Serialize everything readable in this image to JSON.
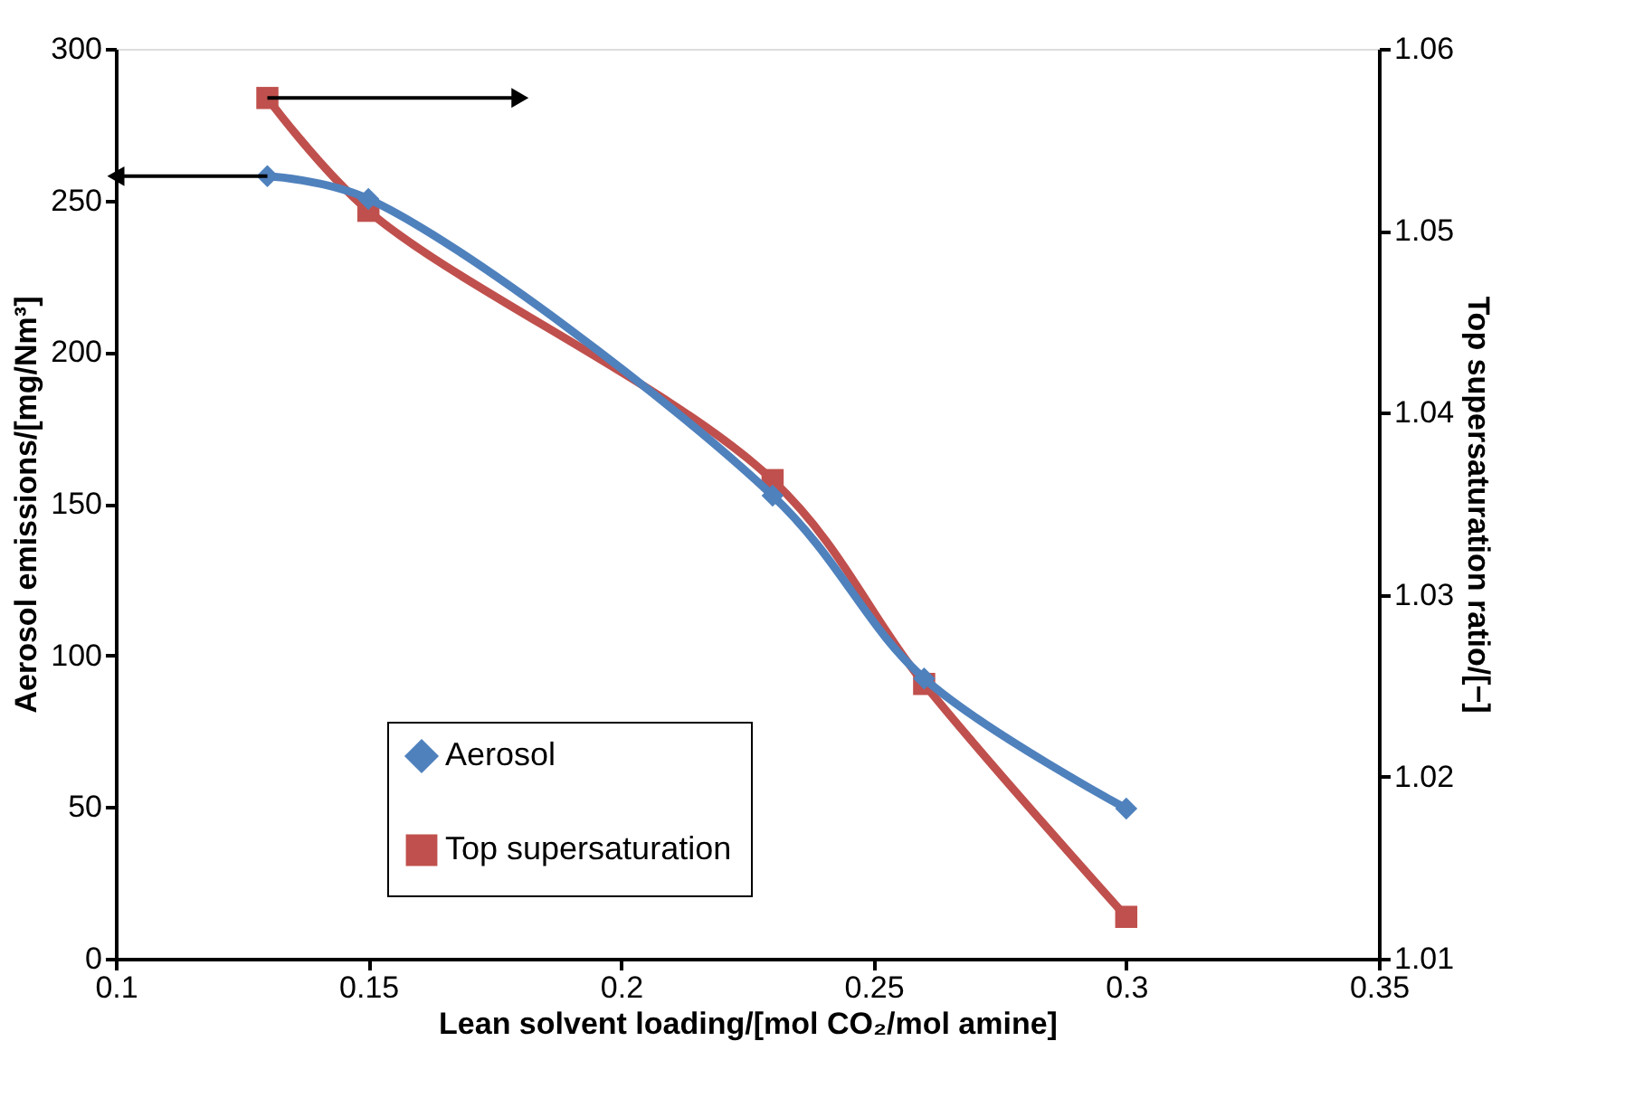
{
  "chart_data": {
    "type": "line",
    "x": [
      0.13,
      0.15,
      0.23,
      0.26,
      0.3
    ],
    "xlabel": "Lean solvent loading/[mol CO₂/mol amine]",
    "ylabel": "Aerosol emissions/[mg/Nm³]",
    "y2label": "Top supersaturation ratio/[−]",
    "xlim": [
      0.1,
      0.35
    ],
    "xticks": [
      0.1,
      0.15,
      0.2,
      0.25,
      0.3,
      0.35
    ],
    "ylim": [
      0,
      300
    ],
    "yticks": [
      0,
      50,
      100,
      150,
      200,
      250,
      300
    ],
    "y2lim": [
      1.01,
      1.06
    ],
    "y2ticks": [
      1.01,
      1.02,
      1.03,
      1.04,
      1.05,
      1.06
    ],
    "grid": false,
    "legend": "bottom left",
    "series": [
      {
        "name": "Aerosol",
        "color": "#4f81bd",
        "marker": "diamond",
        "values": [
          258,
          250.5,
          152.7,
          92.4,
          49.5
        ]
      },
      {
        "name": "Top supersaturation",
        "color": "#c0504d",
        "marker": "square",
        "axis": "y2",
        "values": [
          1.0573,
          1.0511,
          1.0363,
          1.0251,
          1.0123
        ]
      }
    ]
  }
}
